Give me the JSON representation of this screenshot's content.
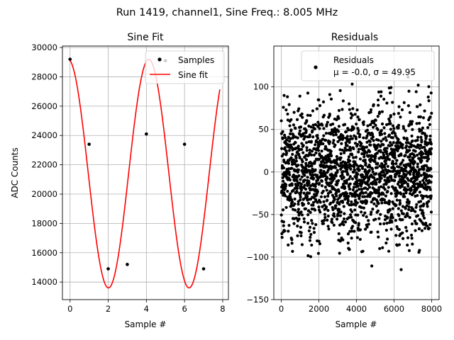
{
  "figure": {
    "suptitle": "Run 1419, channel1, Sine Freq.: 8.005 MHz"
  },
  "chart_data": [
    {
      "type": "scatter+line",
      "title": "Sine Fit",
      "xlabel": "Sample #",
      "ylabel": "ADC Counts",
      "xlim": [
        -0.4,
        8.3
      ],
      "ylim": [
        12800,
        30100
      ],
      "xticks": [
        0,
        2,
        4,
        6,
        8
      ],
      "xtick_labels": [
        "0",
        "2",
        "4",
        "6",
        "8"
      ],
      "yticks": [
        14000,
        16000,
        18000,
        20000,
        22000,
        24000,
        26000,
        28000,
        30000
      ],
      "ytick_labels": [
        "14000",
        "16000",
        "18000",
        "20000",
        "22000",
        "24000",
        "26000",
        "28000",
        "30000"
      ],
      "grid": true,
      "legend_position": "top-right",
      "series": [
        {
          "name": "Samples",
          "kind": "scatter",
          "color": "#000000",
          "x": [
            0,
            1,
            2,
            3,
            4,
            5,
            6,
            7
          ],
          "y": [
            29200,
            23400,
            14900,
            15200,
            24100,
            29100,
            23400,
            14900
          ]
        },
        {
          "name": "Sine fit",
          "kind": "line",
          "color": "#ff0000",
          "fit": {
            "offset": 21400,
            "amplitude": 7800,
            "period": 4.225,
            "phase_x": -0.1,
            "x_range": [
              0,
              7.85
            ]
          }
        }
      ]
    },
    {
      "type": "scatter",
      "title": "Residuals",
      "xlabel": "Sample #",
      "ylabel": "",
      "xlim": [
        -400,
        8400
      ],
      "ylim": [
        -150,
        148
      ],
      "xticks": [
        0,
        2000,
        4000,
        6000,
        8000
      ],
      "xtick_labels": [
        "0",
        "2000",
        "4000",
        "6000",
        "8000"
      ],
      "yticks": [
        -150,
        -100,
        -50,
        0,
        50,
        100
      ],
      "ytick_labels": [
        "−150",
        "−100",
        "−50",
        "0",
        "50",
        "100"
      ],
      "grid": true,
      "legend_position": "top-right",
      "legend_label": "Residuals",
      "legend_stats": "μ = -0.0, σ = 49.95",
      "series": [
        {
          "name": "Residuals",
          "kind": "scatter",
          "color": "#000000",
          "n_points": 8000,
          "mean": 0.0,
          "std": 49.95,
          "envelope": {
            "period": 525,
            "max_amplitude": 130,
            "min_amplitude": 85
          }
        }
      ]
    }
  ]
}
